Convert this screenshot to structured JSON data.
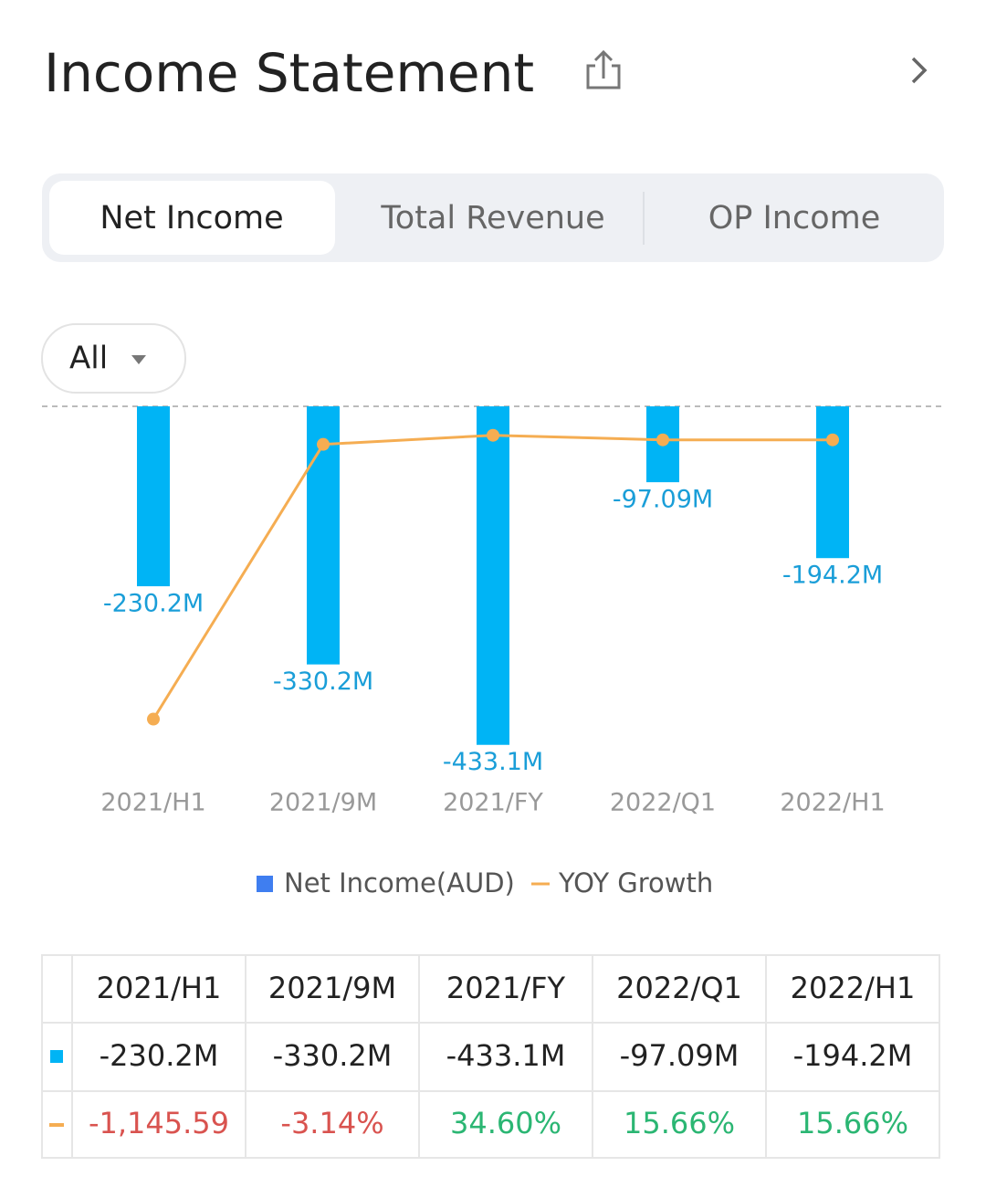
{
  "header": {
    "title": "Income Statement"
  },
  "tabs": [
    "Net Income",
    "Total Revenue",
    "OP Income"
  ],
  "filter": "All",
  "chart_data": {
    "type": "bar",
    "categories": [
      "2021/H1",
      "2021/9M",
      "2021/FY",
      "2022/Q1",
      "2022/H1"
    ],
    "ylim": [
      -500,
      0
    ],
    "y2lim": [
      -1470,
      155
    ],
    "series": [
      {
        "name": "Net Income(AUD)",
        "type": "bar",
        "color": "#00b4f5",
        "legend_color": "#3f7ef0",
        "values": [
          -230.2,
          -330.2,
          -433.1,
          -97.09,
          -194.2
        ],
        "value_labels": [
          "-230.2M",
          "-330.2M",
          "-433.1M",
          "-97.09M",
          "-194.2M"
        ]
      },
      {
        "name": "YOY Growth",
        "type": "line",
        "axis": "y2",
        "color": "#f5ad52",
        "values": [
          -1145.59,
          -3.14,
          34.6,
          15.66,
          15.66
        ],
        "value_labels": [
          "-1,145.59",
          "-3.14%",
          "34.60%",
          "15.66%",
          "15.66%"
        ]
      }
    ]
  }
}
